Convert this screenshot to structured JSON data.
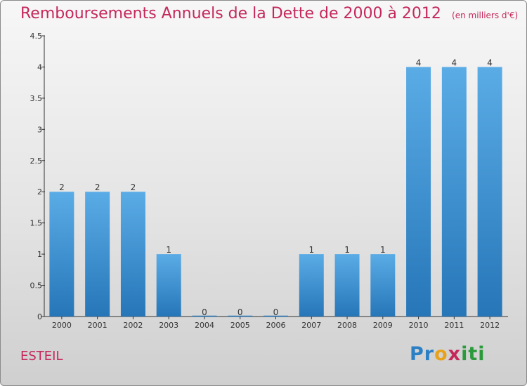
{
  "title": "Remboursements Annuels de la Dette de 2000 à 2012",
  "subtitle": "(en milliers d'€)",
  "commune": "ESTEIL",
  "logo": {
    "text": "Proxiti",
    "colors": [
      "#2b7fc4",
      "#e8a21a",
      "#c4285a",
      "#2b9a3b"
    ]
  },
  "colors": {
    "bar_top": "#5aace6",
    "bar_bottom": "#2676b8",
    "title": "#c4285a"
  },
  "chart_data": {
    "type": "bar",
    "title": "Remboursements Annuels de la Dette de 2000 à 2012",
    "subtitle": "(en milliers d'€)",
    "categories": [
      "2000",
      "2001",
      "2002",
      "2003",
      "2004",
      "2005",
      "2006",
      "2007",
      "2008",
      "2009",
      "2010",
      "2011",
      "2012"
    ],
    "values": [
      2,
      2,
      2,
      1,
      0,
      0,
      0,
      1,
      1,
      1,
      4,
      4,
      4
    ],
    "data_labels": [
      "2",
      "2",
      "2",
      "1",
      "0",
      "0",
      "0",
      "1",
      "1",
      "1",
      "4",
      "4",
      "4"
    ],
    "ylim": [
      0,
      4.5
    ],
    "yticks": [
      "0",
      "0.5",
      "1",
      "1.5",
      "2",
      "2.5",
      "3",
      "3.5",
      "4",
      "4.5"
    ],
    "ytick_values": [
      0,
      0.5,
      1,
      1.5,
      2,
      2.5,
      3,
      3.5,
      4,
      4.5
    ],
    "grid": false,
    "legend": "none"
  }
}
